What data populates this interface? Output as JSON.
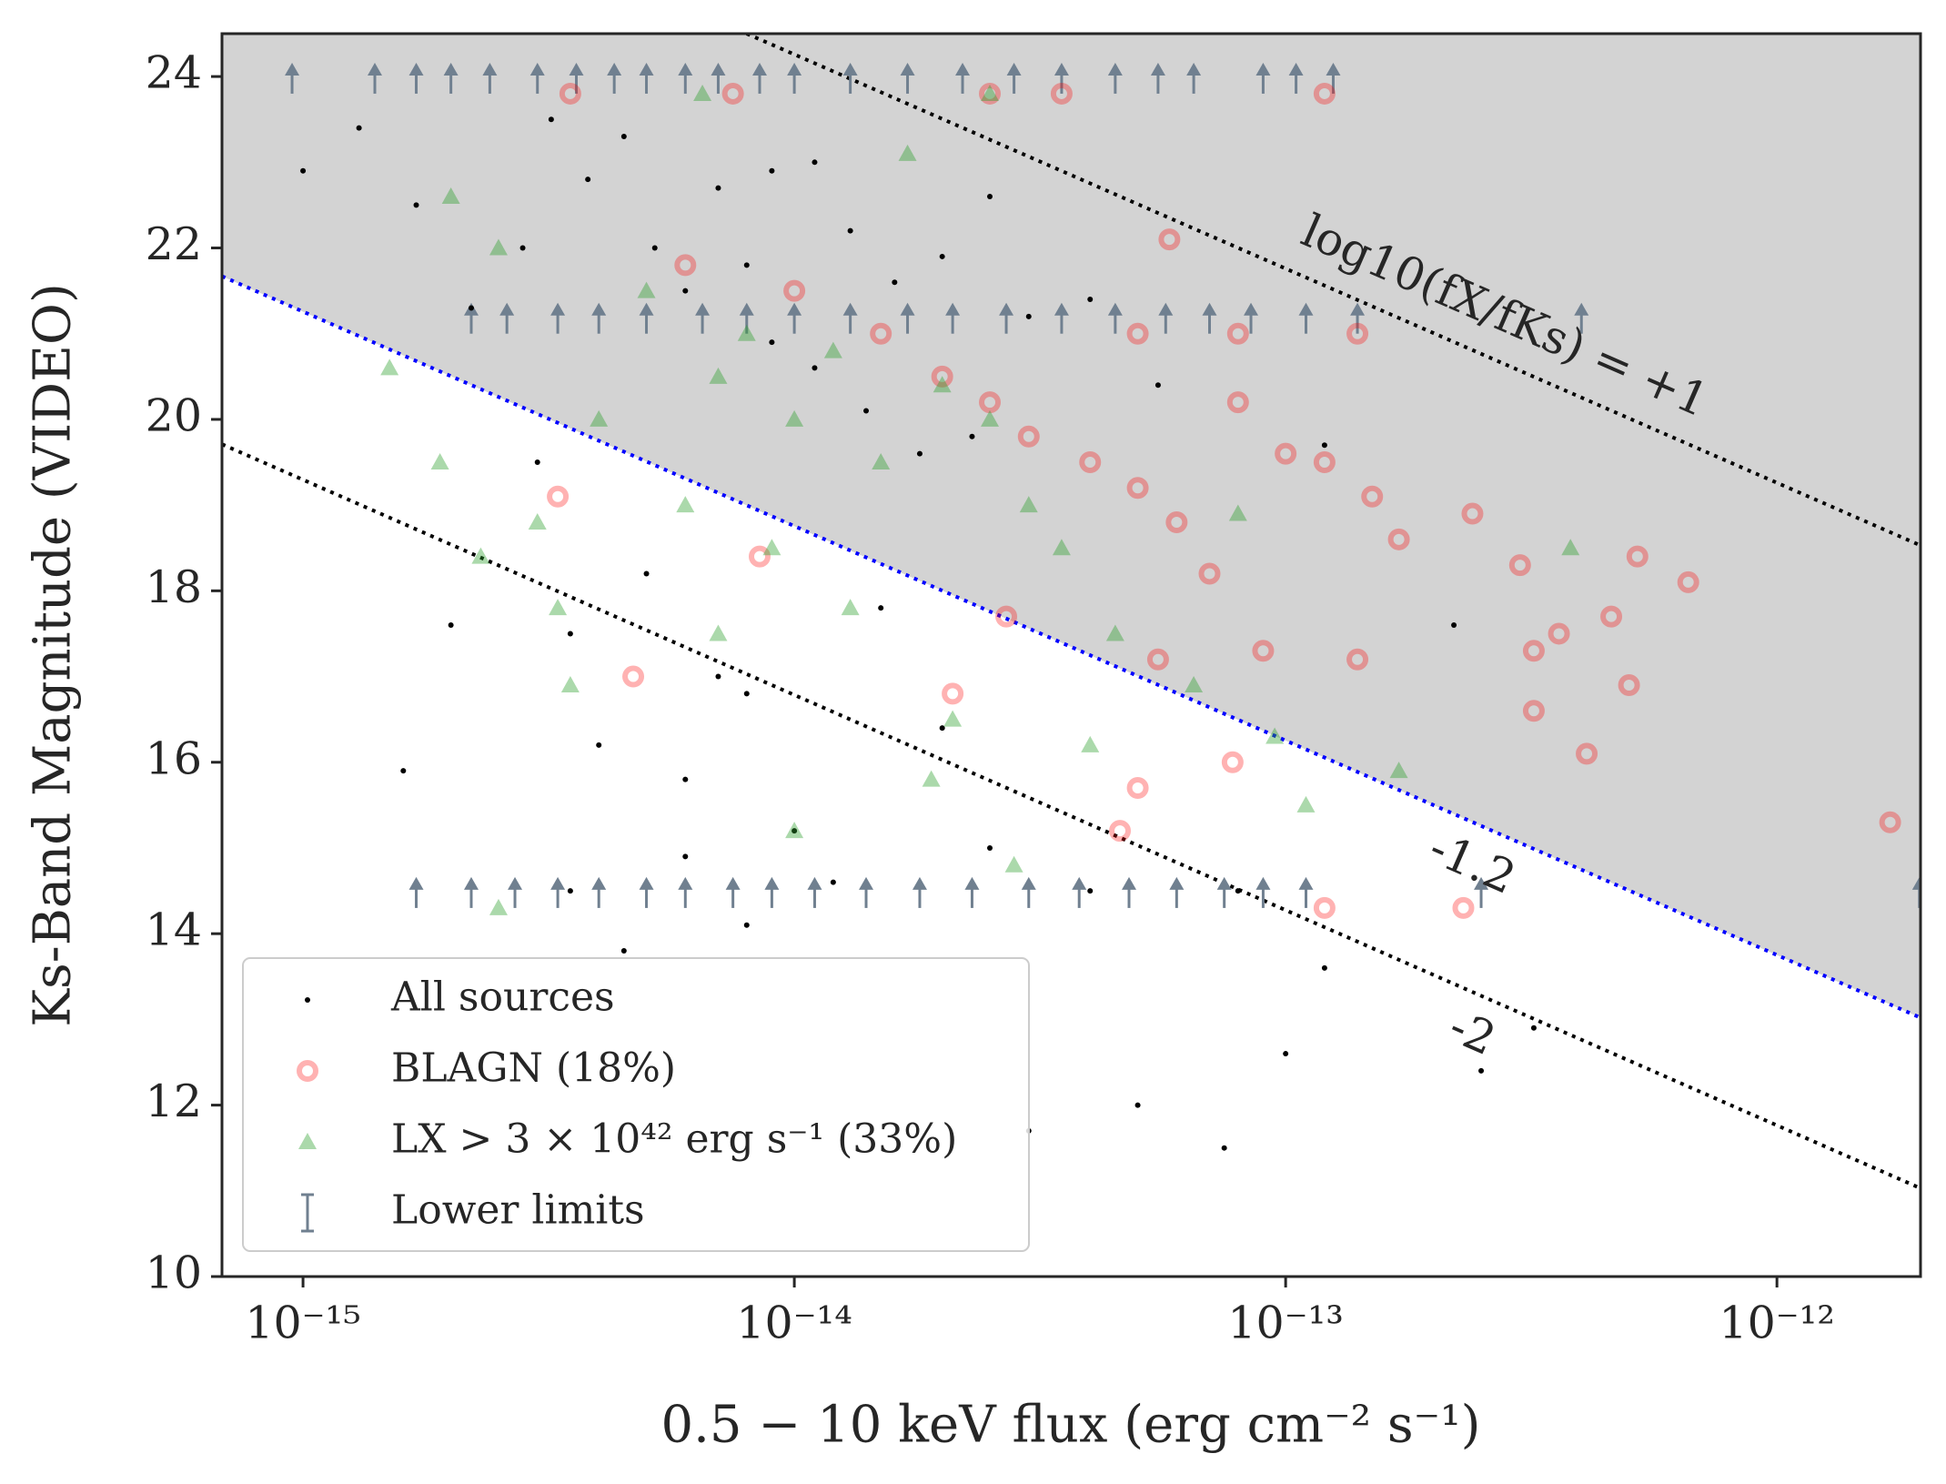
{
  "chart_data": {
    "type": "scatter",
    "xlabel": "0.5 − 10 keV flux (erg cm⁻² s⁻¹)",
    "ylabel": "Ks-Band Magnitude (VIDEO)",
    "xscale": "log",
    "xlim": [
      6.84e-16,
      1.96e-12
    ],
    "ylim": [
      10,
      24.5
    ],
    "xticks": [
      {
        "value": 1e-15,
        "label": "10⁻¹⁵"
      },
      {
        "value": 1e-14,
        "label": "10⁻¹⁴"
      },
      {
        "value": 1e-13,
        "label": "10⁻¹³"
      },
      {
        "value": 1e-12,
        "label": "10⁻¹²"
      }
    ],
    "yticks": [
      10,
      12,
      14,
      16,
      18,
      20,
      22,
      24
    ],
    "legend": "lower left",
    "series": [
      {
        "name": "All sources",
        "marker": "dot",
        "color": "#000000",
        "x": [
          1e-15,
          1.3e-15,
          1.7e-15,
          2.2e-15,
          2.8e-15,
          3.2e-15,
          3.8e-15,
          4.5e-15,
          5.2e-15,
          6e-15,
          7e-15,
          8e-15,
          9e-15,
          1.1e-14,
          1.3e-14,
          1.6e-14,
          2e-14,
          2.5e-14,
          3e-14,
          4e-14,
          5.5e-14,
          3e-15,
          3.5e-15,
          4e-15,
          5e-15,
          6e-15,
          7e-15,
          8e-15,
          1e-14,
          1.5e-14,
          2e-14,
          3.5e-15,
          4.5e-15,
          6e-15,
          8e-15,
          1.2e-14,
          2.5e-14,
          4e-14,
          8e-14,
          1.2e-13,
          2.5e-13,
          1e-13,
          5e-14,
          7.5e-14,
          3e-14,
          1.6e-15,
          2e-15,
          1.2e-13,
          2.2e-13,
          3.2e-13,
          1.1e-14,
          1.4e-14,
          1.8e-14,
          2.3e-14,
          9e-15
        ],
        "values": [
          22.9,
          23.4,
          22.5,
          21.3,
          22,
          23.5,
          22.8,
          23.3,
          22,
          21.5,
          22.7,
          21.8,
          22.9,
          23,
          22.2,
          21.6,
          21.9,
          22.6,
          21.2,
          21.4,
          20.4,
          19.5,
          17.5,
          16.2,
          18.2,
          15.8,
          17,
          16.8,
          15.2,
          17.8,
          16.4,
          14.5,
          13.8,
          14.9,
          14.1,
          14.6,
          15,
          14.5,
          14.5,
          13.6,
          12.4,
          12.6,
          12,
          11.5,
          11.7,
          15.9,
          17.6,
          19.7,
          17.6,
          12.9,
          20.6,
          20.1,
          19.6,
          19.8,
          20.9
        ]
      },
      {
        "name": "BLAGN (18%)",
        "marker": "ring",
        "color": "#ff0000",
        "x": [
          3.5e-15,
          7.5e-15,
          2.5e-14,
          3.5e-14,
          1.2e-13,
          5.8e-14,
          6e-15,
          1e-14,
          1.5e-14,
          2e-14,
          2.5e-14,
          3e-14,
          4e-14,
          5e-14,
          6e-14,
          8e-14,
          1e-13,
          1.2e-13,
          1.5e-13,
          1.7e-13,
          2.4e-13,
          3e-13,
          5.2e-13,
          6.6e-13,
          4.6e-13,
          3.2e-13,
          3.6e-13,
          5e-13,
          3.2e-13,
          4.1e-13,
          1.7e-12,
          7.8e-14,
          5e-14,
          4.6e-14,
          2.3e-13,
          1.2e-13,
          4.7e-15,
          2.1e-14,
          3.3e-15,
          8.5e-15,
          1.4e-13,
          9e-14,
          5.5e-14,
          2.7e-14,
          7e-14,
          5e-14,
          8e-14,
          1.4e-13
        ],
        "values": [
          23.8,
          23.8,
          23.8,
          23.8,
          23.8,
          22.1,
          21.8,
          21.5,
          21,
          20.5,
          20.2,
          19.8,
          19.5,
          19.2,
          18.8,
          20.2,
          19.6,
          19.5,
          19.1,
          18.6,
          18.9,
          18.3,
          18.4,
          18.1,
          17.7,
          17.3,
          17.5,
          16.9,
          16.6,
          16.1,
          15.3,
          16,
          15.7,
          15.2,
          14.3,
          14.3,
          17,
          16.8,
          19.1,
          18.4,
          17.2,
          17.3,
          17.2,
          17.7,
          18.2,
          21,
          21,
          21
        ]
      },
      {
        "name": "LX > 3 × 10⁴² erg s⁻¹ (33%)",
        "marker": "triangle",
        "color": "#2ca02c",
        "x": [
          1.5e-15,
          2e-15,
          2.5e-15,
          1.9e-15,
          2.3e-15,
          3e-15,
          3.3e-15,
          3.5e-15,
          4e-15,
          5e-15,
          6e-15,
          7e-15,
          8e-15,
          9e-15,
          1e-14,
          1.2e-14,
          1.5e-14,
          1.7e-14,
          2e-14,
          2.5e-14,
          3e-14,
          3.5e-14,
          4e-14,
          4.5e-14,
          6.5e-14,
          8e-14,
          9.5e-14,
          1.1e-13,
          1.7e-13,
          3.8e-13,
          2.8e-14,
          2.1e-14,
          1.9e-14,
          1e-14,
          6.5e-15,
          2.5e-14,
          2.5e-15,
          7e-15,
          1.3e-14
        ],
        "values": [
          20.6,
          22.6,
          22,
          19.5,
          18.4,
          18.8,
          17.8,
          16.9,
          20,
          21.5,
          19,
          20.5,
          21,
          18.5,
          20,
          20.8,
          19.5,
          23.1,
          20.4,
          20,
          19,
          18.5,
          16.2,
          17.5,
          16.9,
          18.9,
          16.3,
          15.5,
          15.9,
          18.5,
          14.8,
          16.5,
          15.8,
          15.2,
          23.8,
          23.8,
          14.3,
          17.5,
          17.8
        ]
      },
      {
        "name": "Lower limits",
        "marker": "uplimit",
        "color": "#708090",
        "x": [
          9.5e-16,
          1.4e-15,
          1.7e-15,
          2e-15,
          2.4e-15,
          3e-15,
          3.6e-15,
          4.3e-15,
          5e-15,
          6e-15,
          7e-15,
          8.5e-15,
          1e-14,
          1.3e-14,
          1.7e-14,
          2.2e-14,
          2.8e-14,
          3.5e-14,
          4.5e-14,
          5.5e-14,
          6.5e-14,
          9e-14,
          1.05e-13,
          1.25e-13,
          2.2e-15,
          2.6e-15,
          3.3e-15,
          4e-15,
          5e-15,
          6.5e-15,
          8e-15,
          1e-14,
          1.3e-14,
          1.7e-14,
          2.1e-14,
          2.7e-14,
          3.5e-14,
          4.5e-14,
          5.7e-14,
          7e-14,
          8.5e-14,
          1.1e-13,
          1.4e-13,
          4e-13,
          1.7e-15,
          2.2e-15,
          2.7e-15,
          3.3e-15,
          4e-15,
          5e-15,
          6e-15,
          7.5e-15,
          9e-15,
          1.1e-14,
          1.4e-14,
          1.8e-14,
          2.3e-14,
          3e-14,
          3.8e-14,
          4.8e-14,
          6e-14,
          7.5e-14,
          9e-14,
          1.1e-13,
          2.5e-13,
          1.95e-12
        ],
        "values": [
          23.8,
          23.8,
          23.8,
          23.8,
          23.8,
          23.8,
          23.8,
          23.8,
          23.8,
          23.8,
          23.8,
          23.8,
          23.8,
          23.8,
          23.8,
          23.8,
          23.8,
          23.8,
          23.8,
          23.8,
          23.8,
          23.8,
          23.8,
          23.8,
          21,
          21,
          21,
          21,
          21,
          21,
          21,
          21,
          21,
          21,
          21,
          21,
          21,
          21,
          21,
          21,
          21,
          21,
          21,
          21,
          14.3,
          14.3,
          14.3,
          14.3,
          14.3,
          14.3,
          14.3,
          14.3,
          14.3,
          14.3,
          14.3,
          14.3,
          14.3,
          14.3,
          14.3,
          14.3,
          14.3,
          14.3,
          14.3,
          14.3,
          14.3,
          14.3
        ]
      }
    ],
    "ref_lines": [
      {
        "label": "log10(fX/fKs) = +1",
        "color": "#000000",
        "x": [
          8e-15,
          1.96e-12
        ],
        "y": [
          24.5,
          18.53
        ]
      },
      {
        "label": "-1.2",
        "color": "#0000ff",
        "shade": "above",
        "shade_color": "#d3d3d3",
        "x": [
          6.84e-16,
          1.96e-12
        ],
        "y": [
          21.67,
          13.02
        ]
      },
      {
        "label": "-2",
        "color": "#000000",
        "x": [
          6.84e-16,
          1.96e-12
        ],
        "y": [
          19.71,
          11.03
        ]
      }
    ]
  }
}
